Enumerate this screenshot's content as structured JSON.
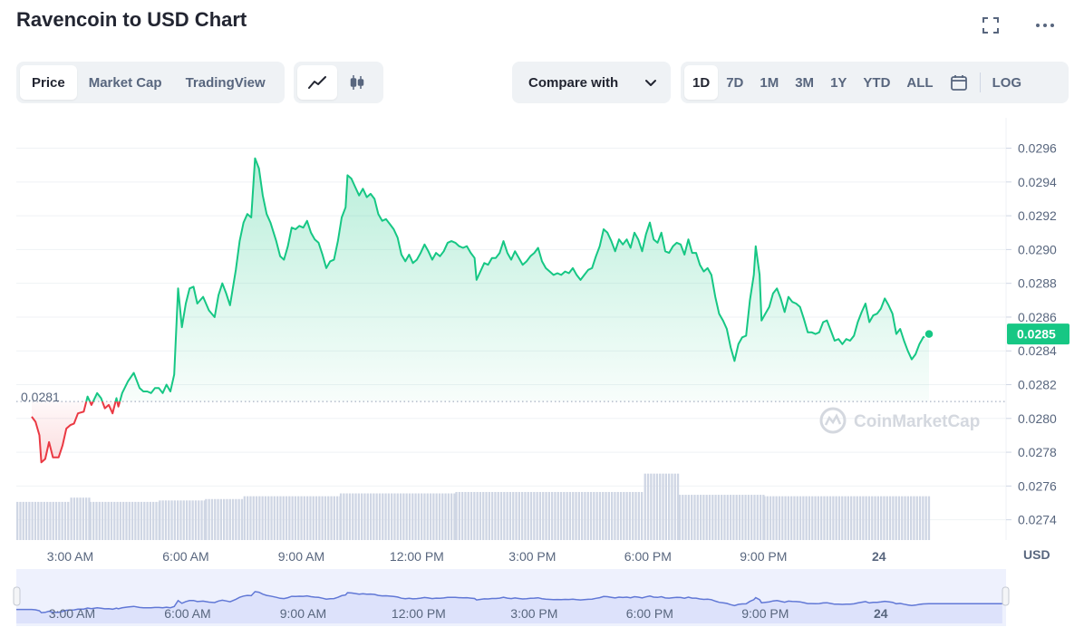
{
  "header": {
    "title": "Ravencoin to USD Chart",
    "expand_icon": "fullscreen-icon",
    "more_icon": "more-dots-icon"
  },
  "tabs": [
    {
      "label": "Price",
      "active": true
    },
    {
      "label": "Market Cap",
      "active": false
    },
    {
      "label": "TradingView",
      "active": false
    }
  ],
  "chart_type_toggle": [
    {
      "icon": "line-chart-icon",
      "active": true
    },
    {
      "icon": "candlestick-icon",
      "active": false
    }
  ],
  "compare": {
    "label": "Compare with",
    "icon": "chevron-down-icon"
  },
  "ranges": [
    {
      "label": "1D",
      "active": true
    },
    {
      "label": "7D",
      "active": false
    },
    {
      "label": "1M",
      "active": false
    },
    {
      "label": "3M",
      "active": false
    },
    {
      "label": "1Y",
      "active": false
    },
    {
      "label": "YTD",
      "active": false
    },
    {
      "label": "ALL",
      "active": false
    }
  ],
  "calendar_icon": "calendar-icon",
  "log_label": "LOG",
  "watermark": "CoinMarketCap",
  "colors": {
    "up": "#16c784",
    "down": "#ea3943",
    "volume": "#cfd6e4",
    "navigator_fill": "#dde2fb",
    "navigator_line": "#6178d6"
  },
  "chart_data": {
    "type": "line",
    "currency_label": "USD",
    "open_price": 0.0281,
    "open_price_label": "0.0281",
    "current_price_label": "0.0285",
    "y_ticks": [
      "0.0296",
      "0.0294",
      "0.0292",
      "0.0290",
      "0.0288",
      "0.0286",
      "0.0284",
      "0.0282",
      "0.0280",
      "0.0278",
      "0.0276",
      "0.0274"
    ],
    "ylim": [
      0.02728,
      0.02978
    ],
    "x_range_hours": [
      1.6,
      27.3
    ],
    "x_ticks": [
      {
        "label": "3:00 AM",
        "h": 3
      },
      {
        "label": "6:00 AM",
        "h": 6
      },
      {
        "label": "9:00 AM",
        "h": 9
      },
      {
        "label": "12:00 PM",
        "h": 12
      },
      {
        "label": "3:00 PM",
        "h": 15
      },
      {
        "label": "6:00 PM",
        "h": 18
      },
      {
        "label": "9:00 PM",
        "h": 21
      },
      {
        "label": "24",
        "h": 24,
        "bold": true
      }
    ],
    "series": [
      {
        "points": [
          [
            2.0,
            0.02801
          ],
          [
            2.1,
            0.02798
          ],
          [
            2.2,
            0.0279
          ],
          [
            2.25,
            0.02774
          ],
          [
            2.35,
            0.02776
          ],
          [
            2.45,
            0.02786
          ],
          [
            2.55,
            0.02777
          ],
          [
            2.7,
            0.02777
          ],
          [
            2.8,
            0.02784
          ],
          [
            2.9,
            0.02794
          ],
          [
            3.0,
            0.02796
          ],
          [
            3.1,
            0.02797
          ],
          [
            3.2,
            0.02803
          ],
          [
            3.35,
            0.02804
          ],
          [
            3.45,
            0.02813
          ],
          [
            3.55,
            0.02808
          ],
          [
            3.7,
            0.02815
          ],
          [
            3.8,
            0.02812
          ],
          [
            3.9,
            0.02806
          ],
          [
            4.0,
            0.02808
          ],
          [
            4.1,
            0.02803
          ],
          [
            4.2,
            0.02812
          ],
          [
            4.25,
            0.02807
          ],
          [
            4.35,
            0.02815
          ],
          [
            4.5,
            0.02822
          ],
          [
            4.65,
            0.02827
          ],
          [
            4.8,
            0.02818
          ],
          [
            4.9,
            0.02816
          ],
          [
            5.0,
            0.02816
          ],
          [
            5.1,
            0.02815
          ],
          [
            5.2,
            0.02818
          ],
          [
            5.3,
            0.02818
          ],
          [
            5.4,
            0.02815
          ],
          [
            5.5,
            0.0282
          ],
          [
            5.6,
            0.02816
          ],
          [
            5.7,
            0.02826
          ],
          [
            5.8,
            0.02877
          ],
          [
            5.9,
            0.02854
          ],
          [
            6.0,
            0.02868
          ],
          [
            6.1,
            0.02877
          ],
          [
            6.2,
            0.02878
          ],
          [
            6.3,
            0.02868
          ],
          [
            6.45,
            0.02872
          ],
          [
            6.6,
            0.02864
          ],
          [
            6.75,
            0.0286
          ],
          [
            6.85,
            0.02873
          ],
          [
            6.95,
            0.0288
          ],
          [
            7.05,
            0.02874
          ],
          [
            7.15,
            0.02867
          ],
          [
            7.3,
            0.02888
          ],
          [
            7.4,
            0.02905
          ],
          [
            7.5,
            0.02916
          ],
          [
            7.6,
            0.02921
          ],
          [
            7.7,
            0.02919
          ],
          [
            7.8,
            0.02954
          ],
          [
            7.9,
            0.02948
          ],
          [
            8.0,
            0.02932
          ],
          [
            8.1,
            0.02921
          ],
          [
            8.2,
            0.02916
          ],
          [
            8.35,
            0.02905
          ],
          [
            8.45,
            0.02896
          ],
          [
            8.55,
            0.02894
          ],
          [
            8.65,
            0.02902
          ],
          [
            8.75,
            0.02913
          ],
          [
            8.85,
            0.02912
          ],
          [
            8.95,
            0.02914
          ],
          [
            9.05,
            0.02913
          ],
          [
            9.15,
            0.02917
          ],
          [
            9.25,
            0.0291
          ],
          [
            9.35,
            0.02906
          ],
          [
            9.45,
            0.02904
          ],
          [
            9.55,
            0.02897
          ],
          [
            9.65,
            0.02889
          ],
          [
            9.75,
            0.02893
          ],
          [
            9.85,
            0.02894
          ],
          [
            9.95,
            0.02905
          ],
          [
            10.05,
            0.02919
          ],
          [
            10.15,
            0.02925
          ],
          [
            10.2,
            0.02944
          ],
          [
            10.3,
            0.02942
          ],
          [
            10.4,
            0.02937
          ],
          [
            10.5,
            0.02932
          ],
          [
            10.6,
            0.02936
          ],
          [
            10.7,
            0.02931
          ],
          [
            10.8,
            0.02933
          ],
          [
            10.9,
            0.0293
          ],
          [
            11.0,
            0.02921
          ],
          [
            11.1,
            0.02917
          ],
          [
            11.2,
            0.02918
          ],
          [
            11.3,
            0.02915
          ],
          [
            11.4,
            0.02912
          ],
          [
            11.5,
            0.02907
          ],
          [
            11.6,
            0.02897
          ],
          [
            11.7,
            0.02893
          ],
          [
            11.8,
            0.02897
          ],
          [
            11.9,
            0.02892
          ],
          [
            12.0,
            0.02894
          ],
          [
            12.1,
            0.02898
          ],
          [
            12.2,
            0.02903
          ],
          [
            12.3,
            0.02899
          ],
          [
            12.4,
            0.02894
          ],
          [
            12.5,
            0.02898
          ],
          [
            12.6,
            0.02896
          ],
          [
            12.7,
            0.02899
          ],
          [
            12.8,
            0.02904
          ],
          [
            12.9,
            0.02905
          ],
          [
            13.0,
            0.02904
          ],
          [
            13.1,
            0.02902
          ],
          [
            13.2,
            0.02901
          ],
          [
            13.3,
            0.02902
          ],
          [
            13.4,
            0.02898
          ],
          [
            13.5,
            0.02895
          ],
          [
            13.55,
            0.02882
          ],
          [
            13.65,
            0.02887
          ],
          [
            13.75,
            0.02892
          ],
          [
            13.85,
            0.02891
          ],
          [
            13.95,
            0.02895
          ],
          [
            14.05,
            0.02895
          ],
          [
            14.15,
            0.02898
          ],
          [
            14.25,
            0.02905
          ],
          [
            14.35,
            0.02898
          ],
          [
            14.45,
            0.02894
          ],
          [
            14.55,
            0.02899
          ],
          [
            14.65,
            0.02895
          ],
          [
            14.75,
            0.02891
          ],
          [
            14.85,
            0.02893
          ],
          [
            14.95,
            0.02896
          ],
          [
            15.05,
            0.02898
          ],
          [
            15.15,
            0.02901
          ],
          [
            15.25,
            0.02893
          ],
          [
            15.35,
            0.02889
          ],
          [
            15.45,
            0.02887
          ],
          [
            15.55,
            0.02885
          ],
          [
            15.65,
            0.02886
          ],
          [
            15.75,
            0.02885
          ],
          [
            15.85,
            0.02887
          ],
          [
            15.95,
            0.02886
          ],
          [
            16.05,
            0.02889
          ],
          [
            16.15,
            0.02885
          ],
          [
            16.25,
            0.02882
          ],
          [
            16.35,
            0.02885
          ],
          [
            16.45,
            0.02888
          ],
          [
            16.55,
            0.02889
          ],
          [
            16.65,
            0.02896
          ],
          [
            16.75,
            0.02902
          ],
          [
            16.85,
            0.02912
          ],
          [
            16.95,
            0.0291
          ],
          [
            17.05,
            0.02905
          ],
          [
            17.15,
            0.02899
          ],
          [
            17.25,
            0.02906
          ],
          [
            17.35,
            0.02903
          ],
          [
            17.45,
            0.02906
          ],
          [
            17.55,
            0.02901
          ],
          [
            17.65,
            0.0291
          ],
          [
            17.75,
            0.02906
          ],
          [
            17.85,
            0.02899
          ],
          [
            17.95,
            0.02909
          ],
          [
            18.05,
            0.02916
          ],
          [
            18.15,
            0.02906
          ],
          [
            18.25,
            0.02904
          ],
          [
            18.35,
            0.0291
          ],
          [
            18.45,
            0.02899
          ],
          [
            18.55,
            0.02898
          ],
          [
            18.65,
            0.02902
          ],
          [
            18.75,
            0.02904
          ],
          [
            18.85,
            0.02903
          ],
          [
            18.95,
            0.02897
          ],
          [
            19.05,
            0.02906
          ],
          [
            19.15,
            0.02898
          ],
          [
            19.25,
            0.02898
          ],
          [
            19.35,
            0.02891
          ],
          [
            19.45,
            0.02887
          ],
          [
            19.55,
            0.02889
          ],
          [
            19.65,
            0.02885
          ],
          [
            19.75,
            0.02872
          ],
          [
            19.85,
            0.02862
          ],
          [
            19.95,
            0.02858
          ],
          [
            20.05,
            0.02853
          ],
          [
            20.15,
            0.02842
          ],
          [
            20.25,
            0.02834
          ],
          [
            20.35,
            0.02844
          ],
          [
            20.45,
            0.02848
          ],
          [
            20.55,
            0.02849
          ],
          [
            20.65,
            0.0287
          ],
          [
            20.75,
            0.02885
          ],
          [
            20.8,
            0.02902
          ],
          [
            20.9,
            0.02885
          ],
          [
            20.95,
            0.02858
          ],
          [
            21.05,
            0.02862
          ],
          [
            21.15,
            0.02866
          ],
          [
            21.25,
            0.02874
          ],
          [
            21.35,
            0.02877
          ],
          [
            21.45,
            0.02871
          ],
          [
            21.55,
            0.02863
          ],
          [
            21.65,
            0.02872
          ],
          [
            21.75,
            0.02869
          ],
          [
            21.85,
            0.02868
          ],
          [
            21.95,
            0.02866
          ],
          [
            22.05,
            0.02859
          ],
          [
            22.15,
            0.02851
          ],
          [
            22.25,
            0.02851
          ],
          [
            22.35,
            0.0285
          ],
          [
            22.45,
            0.02851
          ],
          [
            22.55,
            0.02857
          ],
          [
            22.65,
            0.02858
          ],
          [
            22.75,
            0.02852
          ],
          [
            22.85,
            0.02846
          ],
          [
            22.95,
            0.02847
          ],
          [
            23.05,
            0.02844
          ],
          [
            23.15,
            0.02847
          ],
          [
            23.25,
            0.02846
          ],
          [
            23.35,
            0.02849
          ],
          [
            23.45,
            0.02857
          ],
          [
            23.55,
            0.02863
          ],
          [
            23.65,
            0.02868
          ],
          [
            23.75,
            0.02857
          ],
          [
            23.85,
            0.02861
          ],
          [
            23.95,
            0.02862
          ],
          [
            24.05,
            0.02865
          ],
          [
            24.15,
            0.02871
          ],
          [
            24.25,
            0.02867
          ],
          [
            24.35,
            0.02862
          ],
          [
            24.45,
            0.0285
          ],
          [
            24.55,
            0.02853
          ],
          [
            24.65,
            0.02846
          ],
          [
            24.75,
            0.0284
          ],
          [
            24.85,
            0.02835
          ],
          [
            24.95,
            0.02838
          ],
          [
            25.05,
            0.02844
          ],
          [
            25.15,
            0.02848
          ],
          [
            25.3,
            0.0285
          ]
        ]
      }
    ],
    "volume": [
      {
        "from": 1.6,
        "to": 3.0,
        "level": 0.27
      },
      {
        "from": 3.0,
        "to": 3.5,
        "level": 0.3
      },
      {
        "from": 3.5,
        "to": 5.3,
        "level": 0.27
      },
      {
        "from": 5.3,
        "to": 6.5,
        "level": 0.28
      },
      {
        "from": 6.5,
        "to": 7.5,
        "level": 0.29
      },
      {
        "from": 7.5,
        "to": 10.0,
        "level": 0.31
      },
      {
        "from": 10.0,
        "to": 13.0,
        "level": 0.33
      },
      {
        "from": 13.0,
        "to": 17.9,
        "level": 0.34
      },
      {
        "from": 17.9,
        "to": 18.8,
        "level": 0.47
      },
      {
        "from": 18.8,
        "to": 21.0,
        "level": 0.32
      },
      {
        "from": 21.0,
        "to": 25.3,
        "level": 0.31
      }
    ],
    "navigator_x_ticks": [
      "3:00 AM",
      "6:00 AM",
      "9:00 AM",
      "12:00 PM",
      "3:00 PM",
      "6:00 PM",
      "9:00 PM",
      "24"
    ]
  }
}
